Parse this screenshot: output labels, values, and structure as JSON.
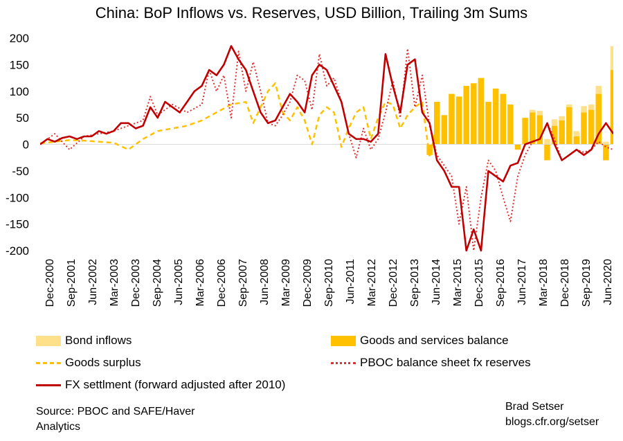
{
  "chart_data": {
    "type": "line",
    "title": "China: BoP Inflows vs. Reserves, USD Billion, Trailing 3m Sums",
    "ylim": [
      -200,
      200
    ],
    "yticks": [
      200,
      150,
      100,
      50,
      0,
      -50,
      -100,
      -150,
      -200
    ],
    "ytick_labels": [
      "200",
      "150",
      "100",
      "50",
      "0",
      "-50",
      "-100",
      "-150",
      "-200"
    ],
    "xlim": [
      "2000-12",
      "2020-06"
    ],
    "xtick_labels": [
      "Dec-2000",
      "Sep-2001",
      "Jun-2002",
      "Mar-2003",
      "Dec-2003",
      "Sep-2004",
      "Jun-2005",
      "Mar-2006",
      "Dec-2006",
      "Sep-2007",
      "Jun-2008",
      "Mar-2009",
      "Dec-2009",
      "Sep-2010",
      "Jun-2011",
      "Mar-2012",
      "Dec-2012",
      "Sep-2013",
      "Jun-2014",
      "Mar-2015",
      "Dec-2015",
      "Sep-2016",
      "Jun-2017",
      "Mar-2018",
      "Dec-2018",
      "Sep-2019",
      "Jun-2020"
    ],
    "grid": false,
    "series": [
      {
        "name": "Goods and services balance",
        "kind": "bar",
        "color": "#FFC000",
        "x": [
          "2014-03",
          "2014-06",
          "2014-09",
          "2014-12",
          "2015-03",
          "2015-06",
          "2015-09",
          "2015-12",
          "2016-03",
          "2016-06",
          "2016-09",
          "2016-12",
          "2017-03",
          "2017-06",
          "2017-09",
          "2017-12",
          "2018-03",
          "2018-06",
          "2018-09",
          "2018-12",
          "2019-03",
          "2019-06",
          "2019-09",
          "2019-12",
          "2020-03",
          "2020-06"
        ],
        "y": [
          -20,
          80,
          55,
          95,
          90,
          110,
          115,
          125,
          80,
          105,
          95,
          75,
          -10,
          50,
          60,
          55,
          -30,
          35,
          45,
          70,
          15,
          60,
          65,
          95,
          -30,
          140
        ]
      },
      {
        "name": "Bond inflows",
        "kind": "bar",
        "color": "#FFE08A",
        "x": [
          "2017-09",
          "2017-12",
          "2018-03",
          "2018-06",
          "2018-09",
          "2018-12",
          "2019-03",
          "2019-06",
          "2019-09",
          "2019-12",
          "2020-03",
          "2020-06"
        ],
        "y": [
          5,
          8,
          10,
          12,
          8,
          5,
          10,
          12,
          10,
          15,
          5,
          45
        ]
      },
      {
        "name": "Goods surplus",
        "kind": "line",
        "style": "dashed",
        "color": "#FFC000",
        "x": [
          "2000-12",
          "2001-06",
          "2001-12",
          "2002-06",
          "2002-12",
          "2003-06",
          "2003-12",
          "2004-06",
          "2004-12",
          "2005-06",
          "2005-12",
          "2006-06",
          "2006-12",
          "2007-06",
          "2007-12",
          "2008-03",
          "2008-06",
          "2008-09",
          "2008-12",
          "2009-03",
          "2009-06",
          "2009-09",
          "2009-12",
          "2010-03",
          "2010-06",
          "2010-09",
          "2010-12",
          "2011-03",
          "2011-06",
          "2011-09",
          "2011-12",
          "2012-03",
          "2012-06",
          "2012-09",
          "2012-12",
          "2013-03",
          "2013-06",
          "2013-09",
          "2013-12",
          "2014-03",
          "2014-06"
        ],
        "y": [
          2,
          5,
          8,
          7,
          5,
          3,
          -10,
          10,
          25,
          30,
          35,
          45,
          60,
          75,
          80,
          40,
          70,
          100,
          115,
          60,
          45,
          70,
          45,
          0,
          55,
          70,
          60,
          -5,
          30,
          60,
          70,
          10,
          50,
          80,
          75,
          30,
          55,
          70,
          80,
          -25,
          40
        ]
      },
      {
        "name": "PBOC balance sheet fx reserves",
        "kind": "line",
        "style": "dotted",
        "color": "#E03030",
        "x": [
          "2000-12",
          "2001-06",
          "2001-12",
          "2002-06",
          "2002-12",
          "2003-06",
          "2003-12",
          "2004-06",
          "2004-09",
          "2004-12",
          "2005-06",
          "2005-12",
          "2006-06",
          "2006-09",
          "2006-12",
          "2007-03",
          "2007-06",
          "2007-09",
          "2007-12",
          "2008-03",
          "2008-06",
          "2008-09",
          "2008-12",
          "2009-03",
          "2009-06",
          "2009-09",
          "2009-12",
          "2010-03",
          "2010-06",
          "2010-09",
          "2010-12",
          "2011-03",
          "2011-06",
          "2011-09",
          "2011-12",
          "2012-03",
          "2012-06",
          "2012-09",
          "2012-12",
          "2013-03",
          "2013-06",
          "2013-09",
          "2013-12",
          "2014-03",
          "2014-06",
          "2014-09",
          "2014-12",
          "2015-03",
          "2015-06",
          "2015-09",
          "2015-12",
          "2016-03",
          "2016-06",
          "2016-09",
          "2016-12",
          "2017-03",
          "2017-06",
          "2017-09",
          "2017-12",
          "2018-03",
          "2018-06",
          "2018-09",
          "2018-12",
          "2019-03",
          "2019-06",
          "2019-09",
          "2019-12",
          "2020-03",
          "2020-06"
        ],
        "y": [
          0,
          20,
          -10,
          15,
          20,
          25,
          35,
          45,
          90,
          55,
          75,
          60,
          75,
          140,
          100,
          130,
          50,
          175,
          100,
          155,
          100,
          40,
          35,
          55,
          80,
          130,
          120,
          65,
          170,
          110,
          125,
          80,
          20,
          -25,
          30,
          -10,
          10,
          60,
          120,
          50,
          180,
          70,
          130,
          35,
          -20,
          -40,
          -60,
          -150,
          -80,
          -200,
          -100,
          -30,
          -50,
          -100,
          -145,
          -60,
          -20,
          5,
          10,
          40,
          10,
          -30,
          -20,
          -10,
          -15,
          -10,
          5,
          -5,
          -10
        ]
      },
      {
        "name": "FX settlment (forward adjusted after 2010)",
        "kind": "line",
        "style": "solid",
        "color": "#C00000",
        "x": [
          "2000-12",
          "2001-03",
          "2001-06",
          "2001-09",
          "2001-12",
          "2002-03",
          "2002-06",
          "2002-09",
          "2002-12",
          "2003-03",
          "2003-06",
          "2003-09",
          "2003-12",
          "2004-03",
          "2004-06",
          "2004-09",
          "2004-12",
          "2005-03",
          "2005-06",
          "2005-09",
          "2005-12",
          "2006-03",
          "2006-06",
          "2006-09",
          "2006-12",
          "2007-03",
          "2007-06",
          "2007-09",
          "2007-12",
          "2008-03",
          "2008-06",
          "2008-09",
          "2008-12",
          "2009-03",
          "2009-06",
          "2009-09",
          "2009-12",
          "2010-03",
          "2010-06",
          "2010-09",
          "2010-12",
          "2011-03",
          "2011-06",
          "2011-09",
          "2011-12",
          "2012-03",
          "2012-06",
          "2012-09",
          "2012-12",
          "2013-03",
          "2013-06",
          "2013-09",
          "2013-12",
          "2014-03",
          "2014-06",
          "2014-09",
          "2014-12",
          "2015-03",
          "2015-06",
          "2015-09",
          "2015-12",
          "2016-03",
          "2016-06",
          "2016-09",
          "2016-12",
          "2017-03",
          "2017-06",
          "2017-09",
          "2017-12",
          "2018-03",
          "2018-06",
          "2018-09",
          "2018-12",
          "2019-03",
          "2019-06",
          "2019-09",
          "2019-12",
          "2020-03",
          "2020-06"
        ],
        "y": [
          0,
          10,
          5,
          12,
          15,
          10,
          15,
          15,
          25,
          20,
          25,
          40,
          40,
          30,
          35,
          70,
          50,
          80,
          70,
          60,
          80,
          100,
          110,
          140,
          130,
          150,
          185,
          160,
          140,
          100,
          60,
          40,
          45,
          70,
          95,
          80,
          60,
          130,
          150,
          140,
          110,
          80,
          20,
          10,
          10,
          5,
          20,
          170,
          110,
          60,
          150,
          160,
          60,
          40,
          -30,
          -50,
          -80,
          -80,
          -200,
          -160,
          -200,
          -50,
          -60,
          -70,
          -40,
          -35,
          0,
          5,
          10,
          40,
          0,
          -30,
          -20,
          -10,
          -20,
          -10,
          20,
          40,
          20
        ]
      }
    ]
  },
  "legend": [
    {
      "label": "Bond inflows",
      "color": "#FFE08A",
      "kind": "bar"
    },
    {
      "label": "Goods and services balance",
      "color": "#FFC000",
      "kind": "bar"
    },
    {
      "label": "Goods surplus",
      "color": "#FFC000",
      "kind": "dashed"
    },
    {
      "label": "PBOC balance sheet fx reserves",
      "color": "#E03030",
      "kind": "dotted"
    },
    {
      "label": "FX settlment (forward adjusted after 2010)",
      "color": "#C00000",
      "kind": "solid"
    }
  ],
  "source": "Source: PBOC and SAFE/Haver Analytics",
  "credit_line1": "Brad Setser",
  "credit_line2": "blogs.cfr.org/setser"
}
